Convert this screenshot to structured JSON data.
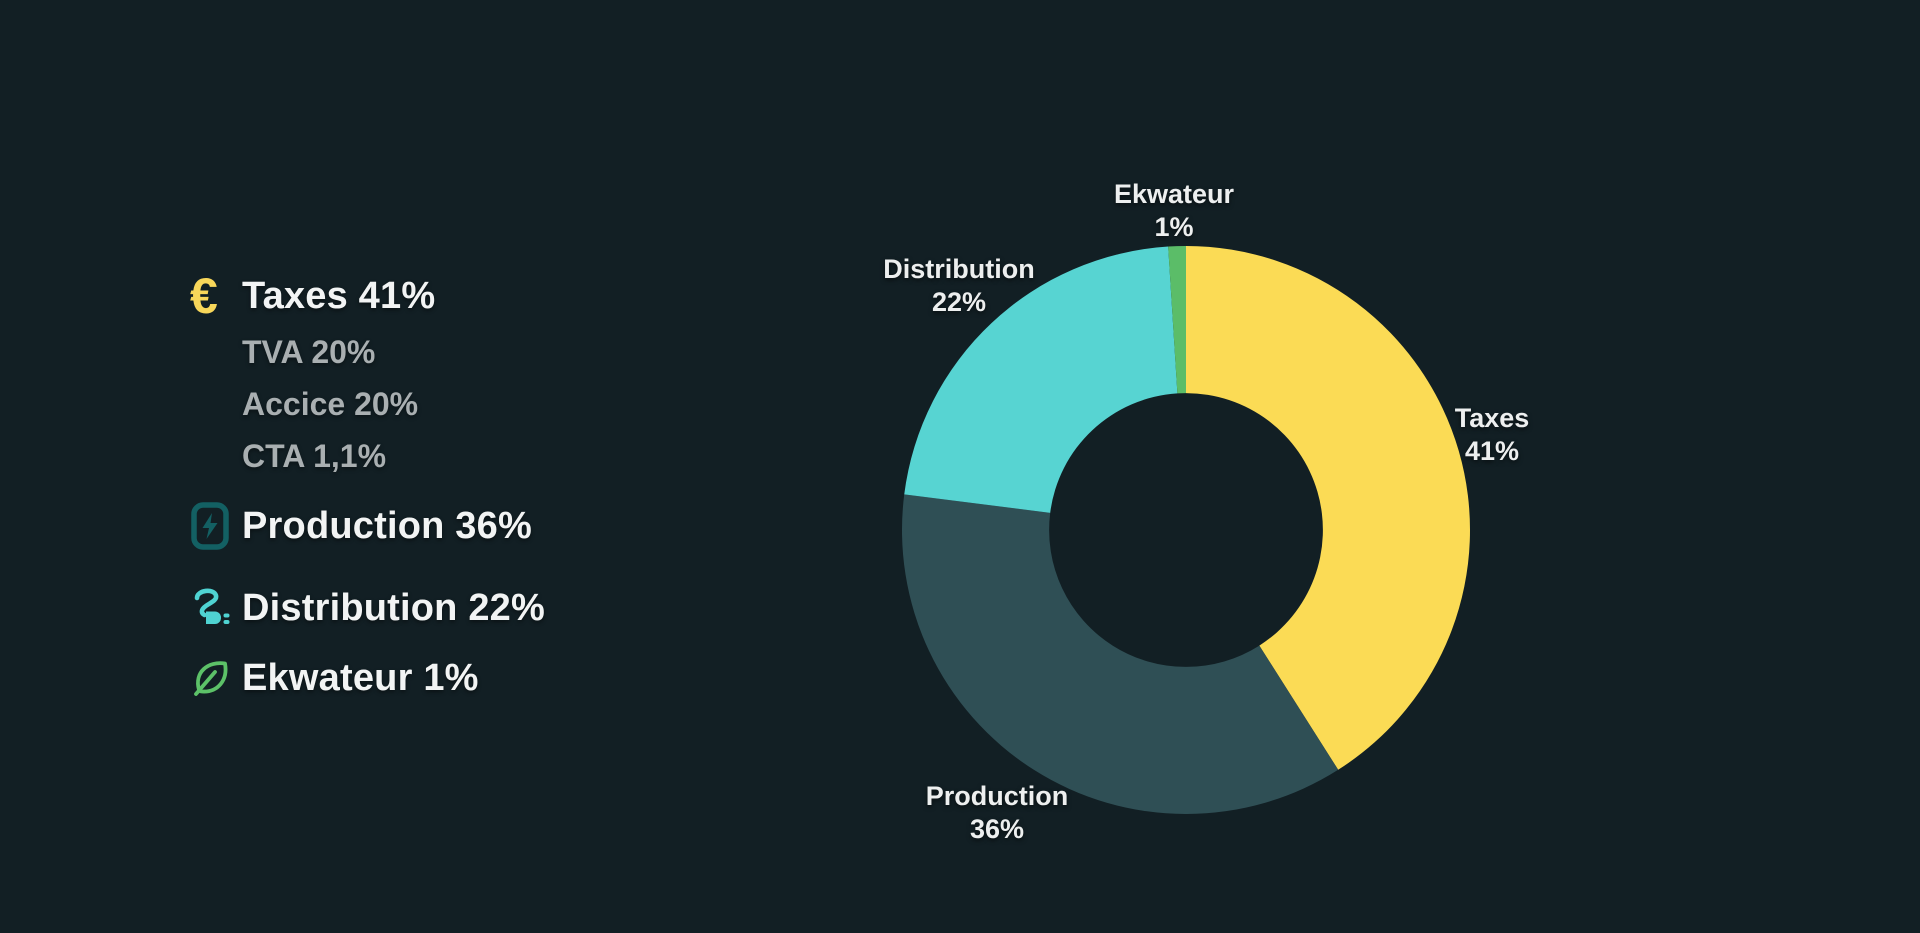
{
  "colors": {
    "bg": "#121F24",
    "text-main": "#F2F4F4",
    "text-sub": "#A9AFB1",
    "text-chart": "#EDEFEF",
    "euro-yellow": "#F8D75A",
    "icon-teal": "#136063",
    "icon-cyan": "#4FD3D2",
    "icon-green": "#5CC168"
  },
  "icons": {
    "euro_glyph": "€"
  },
  "legend": {
    "items": [
      {
        "id": "taxes",
        "icon": "euro-icon",
        "label": "Taxes 41%",
        "sub_items": [
          "TVA 20%",
          "Accice 20%",
          "CTA 1,1%"
        ]
      },
      {
        "id": "production",
        "icon": "battery-bolt-icon",
        "label": "Production 36%"
      },
      {
        "id": "distribution",
        "icon": "plug-icon",
        "label": "Distribution 22%"
      },
      {
        "id": "ekwateur",
        "icon": "leaf-icon",
        "label": "Ekwateur 1%"
      }
    ]
  },
  "chart_data": {
    "type": "pie",
    "donut": true,
    "title": "",
    "start_angle_deg": 0,
    "direction": "clockwise",
    "hole_ratio": 0.482,
    "slices": [
      {
        "name": "Taxes",
        "value": 41,
        "pct_label": "41%",
        "color": "#FBDB55"
      },
      {
        "name": "Production",
        "value": 36,
        "pct_label": "36%",
        "color": "#2F4F55"
      },
      {
        "name": "Distribution",
        "value": 22,
        "pct_label": "22%",
        "color": "#57D4D2"
      },
      {
        "name": "Ekwateur",
        "value": 1,
        "pct_label": "1%",
        "color": "#5BBD68"
      }
    ],
    "taxes_breakdown": [
      {
        "name": "TVA",
        "pct_label": "20%"
      },
      {
        "name": "Accice",
        "pct_label": "20%"
      },
      {
        "name": "CTA",
        "pct_label": "1,1%"
      }
    ]
  }
}
